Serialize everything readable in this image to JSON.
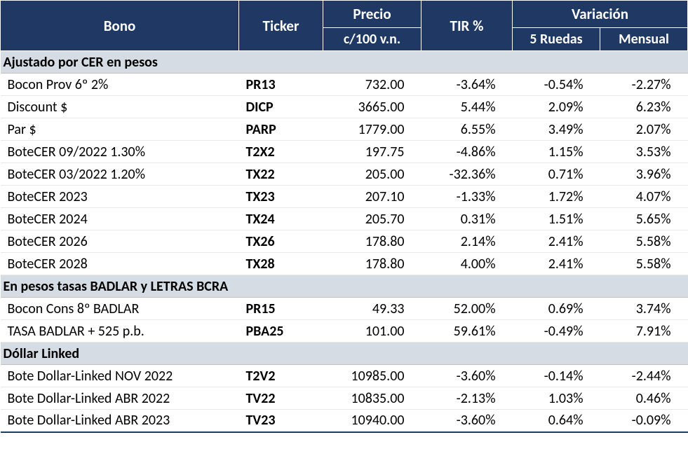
{
  "header": {
    "bono": "Bono",
    "ticker": "Ticker",
    "precio_line1": "Precio",
    "precio_line2": "c/100 v.n.",
    "tir": "TIR %",
    "variacion": "Variación",
    "ruedas": "5 Ruedas",
    "mensual": "Mensual"
  },
  "colors": {
    "header_bg": "#1f3864",
    "header_fg": "#ffffff",
    "section_bg": "#d6dce4",
    "row_border": "#e8e8e8"
  },
  "sections": [
    {
      "title": "Ajustado por CER en pesos",
      "rows": [
        {
          "bono": "Bocon Prov 6º 2%",
          "ticker": "PR13",
          "precio": "732.00",
          "tir": "-3.64%",
          "ruedas": "-0.54%",
          "mensual": "-2.27%"
        },
        {
          "bono": "Discount $",
          "ticker": "DICP",
          "precio": "3665.00",
          "tir": "5.44%",
          "ruedas": "2.09%",
          "mensual": "6.23%"
        },
        {
          "bono": "Par $",
          "ticker": "PARP",
          "precio": "1779.00",
          "tir": "6.55%",
          "ruedas": "3.49%",
          "mensual": "2.07%"
        },
        {
          "bono": "BoteCER  09/2022 1.30%",
          "ticker": "T2X2",
          "precio": "197.75",
          "tir": "-4.86%",
          "ruedas": "1.15%",
          "mensual": "3.53%"
        },
        {
          "bono": "BoteCER  03/2022 1.20%",
          "ticker": "TX22",
          "precio": "205.00",
          "tir": "-32.36%",
          "ruedas": "0.71%",
          "mensual": "3.96%"
        },
        {
          "bono": "BoteCER 2023",
          "ticker": "TX23",
          "precio": "207.10",
          "tir": "-1.33%",
          "ruedas": "1.72%",
          "mensual": "4.07%"
        },
        {
          "bono": "BoteCER 2024",
          "ticker": "TX24",
          "precio": "205.70",
          "tir": "0.31%",
          "ruedas": "1.51%",
          "mensual": "5.65%"
        },
        {
          "bono": "BoteCER 2026",
          "ticker": "TX26",
          "precio": "178.80",
          "tir": "2.14%",
          "ruedas": "2.41%",
          "mensual": "5.58%"
        },
        {
          "bono": "BoteCER 2028",
          "ticker": "TX28",
          "precio": "178.80",
          "tir": "4.00%",
          "ruedas": "2.41%",
          "mensual": "5.58%"
        }
      ]
    },
    {
      "title": "En pesos tasas BADLAR y LETRAS BCRA",
      "rows": [
        {
          "bono": "Bocon Cons 8º BADLAR",
          "ticker": "PR15",
          "precio": "49.33",
          "tir": "52.00%",
          "ruedas": "0.69%",
          "mensual": "3.74%"
        },
        {
          "bono": "TASA BADLAR + 525 p.b.",
          "ticker": "PBA25",
          "precio": "101.00",
          "tir": "59.61%",
          "ruedas": "-0.49%",
          "mensual": "7.91%"
        }
      ]
    },
    {
      "title": "Dóllar Linked",
      "rows": [
        {
          "bono": "Bote Dollar-Linked   NOV 2022",
          "ticker": "T2V2",
          "precio": "10985.00",
          "tir": "-3.60%",
          "ruedas": "-0.14%",
          "mensual": "-2.44%"
        },
        {
          "bono": "Bote Dollar-Linked ABR 2022",
          "ticker": "TV22",
          "precio": "10835.00",
          "tir": "-2.13%",
          "ruedas": "1.03%",
          "mensual": "0.46%"
        },
        {
          "bono": "Bote Dollar-Linked ABR 2023",
          "ticker": "TV23",
          "precio": "10940.00",
          "tir": "-3.60%",
          "ruedas": "0.64%",
          "mensual": "-0.09%"
        }
      ]
    }
  ]
}
